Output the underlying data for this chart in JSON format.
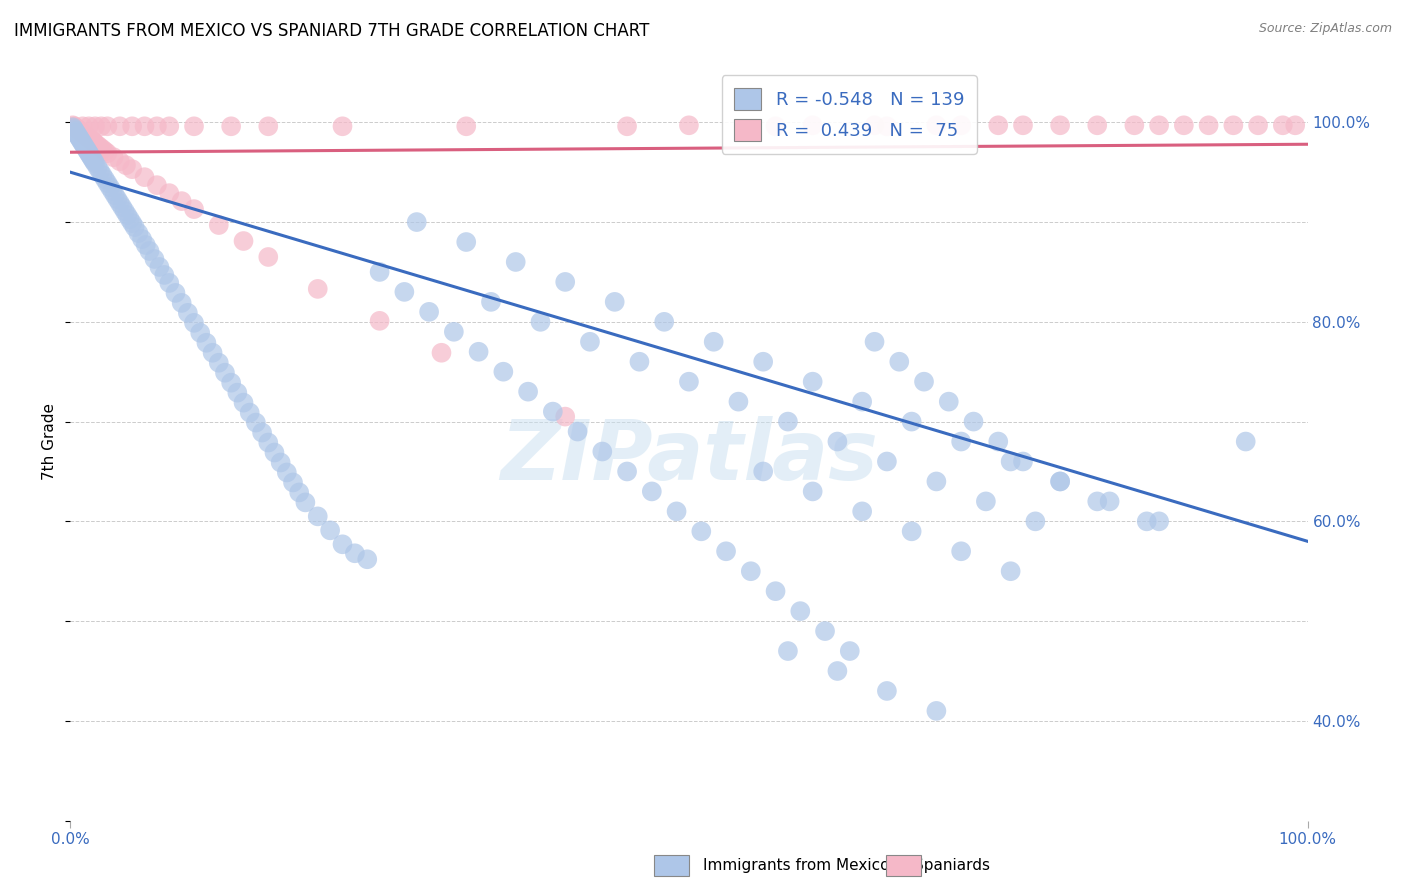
{
  "title": "IMMIGRANTS FROM MEXICO VS SPANIARD 7TH GRADE CORRELATION CHART",
  "source": "Source: ZipAtlas.com",
  "ylabel": "7th Grade",
  "xlim": [
    0.0,
    1.0
  ],
  "ylim": [
    0.3,
    1.06
  ],
  "xtick_labels": [
    "0.0%",
    "100.0%"
  ],
  "ytick_labels": [
    "40.0%",
    "60.0%",
    "80.0%",
    "100.0%"
  ],
  "ytick_positions": [
    0.4,
    0.6,
    0.8,
    1.0
  ],
  "legend_r_mexico": "-0.548",
  "legend_n_mexico": "139",
  "legend_r_spaniard": "0.439",
  "legend_n_spaniard": "75",
  "color_mexico": "#aec6e8",
  "color_spaniard": "#f5b8c8",
  "color_mexico_line": "#3a6bbf",
  "color_spaniard_line": "#d95f7f",
  "watermark": "ZIPatlas",
  "mexico_line_x": [
    0.0,
    1.0
  ],
  "mexico_line_y": [
    0.95,
    0.58
  ],
  "spaniard_line_x": [
    0.0,
    1.0
  ],
  "spaniard_line_y": [
    0.97,
    0.978
  ],
  "mexico_scatter_x": [
    0.002,
    0.003,
    0.004,
    0.005,
    0.006,
    0.007,
    0.008,
    0.009,
    0.01,
    0.011,
    0.012,
    0.013,
    0.014,
    0.015,
    0.016,
    0.017,
    0.018,
    0.019,
    0.02,
    0.022,
    0.024,
    0.026,
    0.028,
    0.03,
    0.032,
    0.034,
    0.036,
    0.038,
    0.04,
    0.042,
    0.044,
    0.046,
    0.048,
    0.05,
    0.052,
    0.055,
    0.058,
    0.061,
    0.064,
    0.068,
    0.072,
    0.076,
    0.08,
    0.085,
    0.09,
    0.095,
    0.1,
    0.105,
    0.11,
    0.115,
    0.12,
    0.125,
    0.13,
    0.135,
    0.14,
    0.145,
    0.15,
    0.155,
    0.16,
    0.165,
    0.17,
    0.175,
    0.18,
    0.185,
    0.19,
    0.2,
    0.21,
    0.22,
    0.23,
    0.24,
    0.25,
    0.27,
    0.29,
    0.31,
    0.33,
    0.35,
    0.37,
    0.39,
    0.41,
    0.43,
    0.45,
    0.47,
    0.49,
    0.51,
    0.53,
    0.55,
    0.57,
    0.59,
    0.61,
    0.63,
    0.65,
    0.67,
    0.69,
    0.71,
    0.73,
    0.75,
    0.77,
    0.8,
    0.83,
    0.87,
    0.28,
    0.32,
    0.36,
    0.4,
    0.44,
    0.48,
    0.52,
    0.56,
    0.6,
    0.64,
    0.68,
    0.72,
    0.76,
    0.8,
    0.84,
    0.88,
    0.34,
    0.38,
    0.42,
    0.46,
    0.5,
    0.54,
    0.58,
    0.62,
    0.66,
    0.7,
    0.74,
    0.78,
    0.56,
    0.6,
    0.64,
    0.68,
    0.72,
    0.76,
    0.58,
    0.62,
    0.66,
    0.7,
    0.95
  ],
  "mexico_scatter_y": [
    0.995,
    0.993,
    0.991,
    0.989,
    0.987,
    0.985,
    0.983,
    0.981,
    0.979,
    0.977,
    0.975,
    0.973,
    0.971,
    0.969,
    0.967,
    0.965,
    0.963,
    0.961,
    0.959,
    0.955,
    0.951,
    0.947,
    0.943,
    0.939,
    0.935,
    0.931,
    0.927,
    0.923,
    0.919,
    0.915,
    0.911,
    0.907,
    0.903,
    0.899,
    0.895,
    0.889,
    0.883,
    0.877,
    0.871,
    0.863,
    0.855,
    0.847,
    0.839,
    0.829,
    0.819,
    0.809,
    0.799,
    0.789,
    0.779,
    0.769,
    0.759,
    0.749,
    0.739,
    0.729,
    0.719,
    0.709,
    0.699,
    0.689,
    0.679,
    0.669,
    0.659,
    0.649,
    0.639,
    0.629,
    0.619,
    0.605,
    0.591,
    0.577,
    0.568,
    0.562,
    0.85,
    0.83,
    0.81,
    0.79,
    0.77,
    0.75,
    0.73,
    0.71,
    0.69,
    0.67,
    0.65,
    0.63,
    0.61,
    0.59,
    0.57,
    0.55,
    0.53,
    0.51,
    0.49,
    0.47,
    0.78,
    0.76,
    0.74,
    0.72,
    0.7,
    0.68,
    0.66,
    0.64,
    0.62,
    0.6,
    0.9,
    0.88,
    0.86,
    0.84,
    0.82,
    0.8,
    0.78,
    0.76,
    0.74,
    0.72,
    0.7,
    0.68,
    0.66,
    0.64,
    0.62,
    0.6,
    0.82,
    0.8,
    0.78,
    0.76,
    0.74,
    0.72,
    0.7,
    0.68,
    0.66,
    0.64,
    0.62,
    0.6,
    0.65,
    0.63,
    0.61,
    0.59,
    0.57,
    0.55,
    0.47,
    0.45,
    0.43,
    0.41,
    0.68
  ],
  "spaniard_scatter_x": [
    0.002,
    0.003,
    0.004,
    0.005,
    0.006,
    0.007,
    0.008,
    0.009,
    0.01,
    0.011,
    0.012,
    0.013,
    0.014,
    0.015,
    0.016,
    0.017,
    0.018,
    0.019,
    0.02,
    0.022,
    0.024,
    0.026,
    0.028,
    0.03,
    0.035,
    0.04,
    0.045,
    0.05,
    0.06,
    0.07,
    0.08,
    0.09,
    0.1,
    0.12,
    0.14,
    0.16,
    0.2,
    0.25,
    0.3,
    0.4,
    0.5,
    0.6,
    0.65,
    0.7,
    0.72,
    0.75,
    0.77,
    0.8,
    0.83,
    0.86,
    0.88,
    0.9,
    0.92,
    0.94,
    0.96,
    0.98,
    0.99,
    0.01,
    0.015,
    0.02,
    0.025,
    0.03,
    0.04,
    0.05,
    0.06,
    0.07,
    0.08,
    0.1,
    0.13,
    0.16,
    0.22,
    0.32,
    0.45,
    0.57,
    0.66
  ],
  "spaniard_scatter_y": [
    0.997,
    0.996,
    0.995,
    0.994,
    0.993,
    0.992,
    0.991,
    0.99,
    0.989,
    0.988,
    0.987,
    0.986,
    0.985,
    0.984,
    0.983,
    0.982,
    0.981,
    0.98,
    0.979,
    0.977,
    0.975,
    0.973,
    0.971,
    0.969,
    0.965,
    0.961,
    0.957,
    0.953,
    0.945,
    0.937,
    0.929,
    0.921,
    0.913,
    0.897,
    0.881,
    0.865,
    0.833,
    0.801,
    0.769,
    0.705,
    0.997,
    0.997,
    0.997,
    0.997,
    0.997,
    0.997,
    0.997,
    0.997,
    0.997,
    0.997,
    0.997,
    0.997,
    0.997,
    0.997,
    0.997,
    0.997,
    0.997,
    0.996,
    0.996,
    0.996,
    0.996,
    0.996,
    0.996,
    0.996,
    0.996,
    0.996,
    0.996,
    0.996,
    0.996,
    0.996,
    0.996,
    0.996,
    0.996,
    0.996,
    0.996
  ]
}
